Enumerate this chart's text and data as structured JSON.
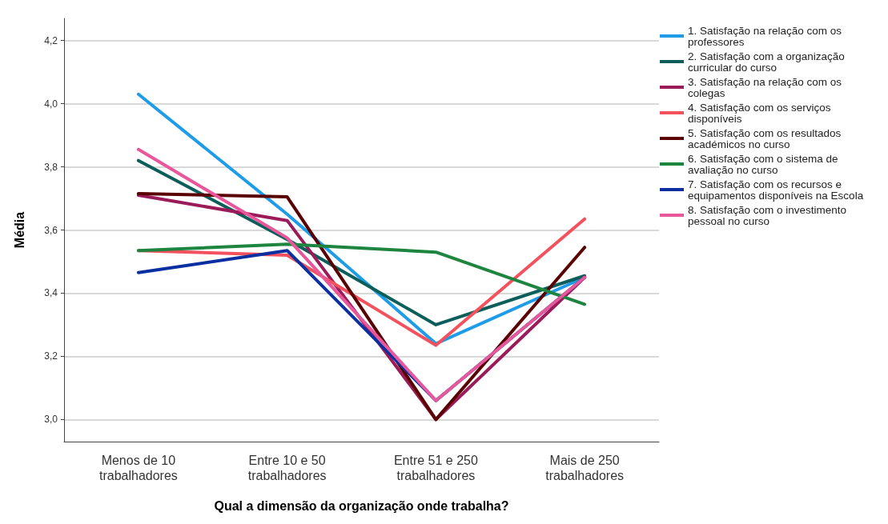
{
  "chart_data": {
    "type": "line",
    "xlabel": "Qual a dimensão da organização onde trabalha?",
    "ylabel": "Média",
    "categories": [
      "Menos de 10\ntrabalhadores",
      "Entre 10 e 50\ntrabalhadores",
      "Entre 51 e 250\ntrabalhadores",
      "Mais de 250\ntrabalhadores"
    ],
    "series": [
      {
        "name": "1. Satisfação na relação com os professores",
        "color": "#1f9ce8",
        "values": [
          4.03,
          3.65,
          3.24,
          3.45
        ]
      },
      {
        "name": "2. Satisfação com a organização curricular do curso",
        "color": "#0b5e5a",
        "values": [
          3.82,
          3.57,
          3.3,
          3.455
        ]
      },
      {
        "name": "3. Satisfação na relação com os colegas",
        "color": "#9b1b5a",
        "values": [
          3.71,
          3.63,
          3.0,
          3.45
        ]
      },
      {
        "name": "4. Satisfação com os serviços disponíveis",
        "color": "#f4515e",
        "values": [
          3.535,
          3.52,
          3.235,
          3.635
        ]
      },
      {
        "name": "5. Satisfação com os resultados académicos no curso",
        "color": "#5a0000",
        "values": [
          3.715,
          3.705,
          3.0,
          3.545
        ]
      },
      {
        "name": "6. Satisfação com o sistema de avaliação no curso",
        "color": "#1e8540",
        "values": [
          3.535,
          3.555,
          3.53,
          3.365
        ]
      },
      {
        "name": "7. Satisfação com os recursos e equipamentos disponíveis na Escola",
        "color": "#0a2fa0",
        "values": [
          3.465,
          3.535,
          3.06,
          3.45
        ]
      },
      {
        "name": "8. Satisfação com o investimento pessoal no curso",
        "color": "#e8579a",
        "values": [
          3.855,
          3.575,
          3.06,
          3.45
        ]
      }
    ],
    "ylim": [
      2.93,
      4.27
    ],
    "yticks": [
      {
        "value": 3.0,
        "label": "3,0"
      },
      {
        "value": 3.2,
        "label": "3,2"
      },
      {
        "value": 3.4,
        "label": "3,4"
      },
      {
        "value": 3.6,
        "label": "3,6"
      },
      {
        "value": 3.8,
        "label": "3,8"
      },
      {
        "value": 4.0,
        "label": "4,0"
      },
      {
        "value": 4.2,
        "label": "4,2"
      }
    ],
    "grid": "y",
    "legend": "top right",
    "marker": "none",
    "line_style": "solid"
  }
}
